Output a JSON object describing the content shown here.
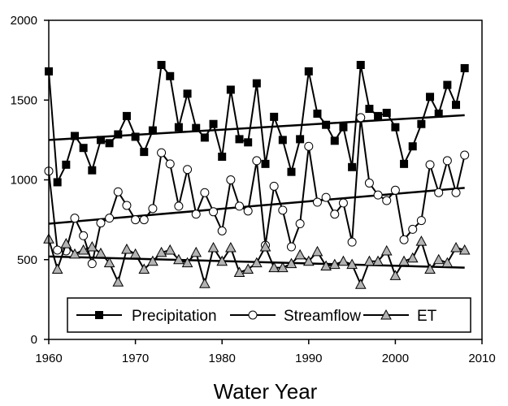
{
  "chart_data": {
    "type": "line",
    "title": "",
    "xlabel": "Water Year",
    "ylabel": "",
    "xlim": [
      1960,
      2010
    ],
    "ylim": [
      0,
      2000
    ],
    "xticks": [
      1960,
      1970,
      1980,
      1990,
      2000,
      2010
    ],
    "yticks": [
      0,
      500,
      1000,
      1500,
      2000
    ],
    "grid": false,
    "legend_position": "bottom",
    "x": [
      1960,
      1961,
      1962,
      1963,
      1964,
      1965,
      1966,
      1967,
      1968,
      1969,
      1970,
      1971,
      1972,
      1973,
      1974,
      1975,
      1976,
      1977,
      1978,
      1979,
      1980,
      1981,
      1982,
      1983,
      1984,
      1985,
      1986,
      1987,
      1988,
      1989,
      1990,
      1991,
      1992,
      1993,
      1994,
      1995,
      1996,
      1997,
      1998,
      1999,
      2000,
      2001,
      2002,
      2003,
      2004,
      2005,
      2006,
      2007,
      2008
    ],
    "series": [
      {
        "name": "Precipitation",
        "marker": "filled-square",
        "values": [
          1680,
          985,
          1095,
          1275,
          1200,
          1060,
          1250,
          1230,
          1285,
          1400,
          1270,
          1175,
          1310,
          1720,
          1650,
          1330,
          1540,
          1325,
          1265,
          1350,
          1145,
          1565,
          1255,
          1235,
          1605,
          1100,
          1395,
          1250,
          1050,
          1255,
          1680,
          1415,
          1345,
          1245,
          1330,
          1080,
          1720,
          1445,
          1400,
          1420,
          1330,
          1100,
          1210,
          1350,
          1520,
          1415,
          1595,
          1470,
          1700
        ],
        "trend": {
          "start": 1250,
          "end": 1405
        }
      },
      {
        "name": "Streamflow",
        "marker": "open-circle",
        "values": [
          1055,
          560,
          555,
          760,
          650,
          475,
          730,
          760,
          925,
          840,
          750,
          750,
          820,
          1170,
          1100,
          835,
          1065,
          785,
          920,
          800,
          680,
          1000,
          835,
          805,
          1120,
          590,
          960,
          810,
          580,
          725,
          1210,
          860,
          890,
          785,
          855,
          610,
          1390,
          980,
          905,
          870,
          935,
          625,
          690,
          745,
          1095,
          920,
          1120,
          920,
          1155
        ],
        "trend": {
          "start": 725,
          "end": 950
        }
      },
      {
        "name": "ET",
        "marker": "gray-triangle",
        "values": [
          630,
          440,
          600,
          535,
          560,
          580,
          540,
          480,
          360,
          565,
          535,
          440,
          490,
          545,
          560,
          500,
          480,
          545,
          350,
          575,
          490,
          575,
          420,
          440,
          480,
          580,
          450,
          450,
          475,
          530,
          490,
          550,
          460,
          470,
          490,
          470,
          345,
          490,
          490,
          555,
          400,
          490,
          510,
          615,
          440,
          500,
          480,
          575,
          560
        ],
        "trend": {
          "start": 520,
          "end": 450
        }
      }
    ]
  }
}
